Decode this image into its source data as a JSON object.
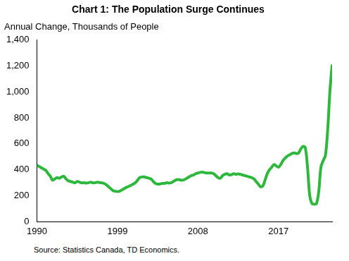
{
  "chart_data": {
    "type": "line",
    "title": "Chart 1: The Population Surge Continues",
    "ylabel": "Annual Change, Thousands of People",
    "note": "Source: Statistics Canada, TD Economics.",
    "categories": [
      "1990",
      null,
      null,
      null,
      null,
      null,
      null,
      null,
      null,
      null,
      null,
      null,
      null,
      null,
      null,
      null,
      null,
      null,
      null,
      null,
      null,
      null,
      null,
      null,
      null,
      null,
      null,
      null,
      null,
      null,
      null,
      null,
      null,
      null,
      null,
      null,
      "1999",
      null,
      null,
      null,
      null,
      null,
      null,
      null,
      null,
      null,
      null,
      null,
      null,
      null,
      null,
      null,
      null,
      null,
      null,
      null,
      null,
      null,
      null,
      null,
      null,
      null,
      null,
      null,
      null,
      null,
      null,
      null,
      null,
      null,
      null,
      null,
      "2008",
      null,
      null,
      null,
      null,
      null,
      null,
      null,
      null,
      null,
      null,
      null,
      null,
      null,
      null,
      null,
      null,
      null,
      null,
      null,
      null,
      null,
      null,
      null,
      null,
      null,
      null,
      null,
      null,
      null,
      null,
      null,
      null,
      null,
      null,
      null,
      "2017",
      null,
      null,
      null,
      null,
      null,
      null,
      null,
      null,
      null,
      null,
      null,
      null,
      null,
      null,
      null,
      null,
      null,
      null,
      null,
      null,
      null,
      null,
      null,
      null
    ],
    "values": [
      435,
      425,
      415,
      405,
      395,
      370,
      350,
      320,
      330,
      340,
      335,
      345,
      350,
      330,
      315,
      310,
      305,
      300,
      310,
      305,
      300,
      300,
      298,
      300,
      305,
      300,
      300,
      305,
      302,
      300,
      295,
      285,
      270,
      255,
      240,
      235,
      233,
      235,
      245,
      255,
      265,
      272,
      280,
      290,
      300,
      320,
      340,
      345,
      345,
      340,
      335,
      330,
      310,
      295,
      290,
      290,
      295,
      295,
      300,
      298,
      300,
      310,
      320,
      325,
      322,
      320,
      325,
      335,
      345,
      355,
      360,
      370,
      375,
      380,
      382,
      378,
      375,
      375,
      375,
      370,
      355,
      340,
      335,
      355,
      365,
      370,
      360,
      362,
      370,
      365,
      368,
      365,
      360,
      355,
      350,
      345,
      340,
      330,
      310,
      290,
      270,
      275,
      320,
      370,
      400,
      420,
      440,
      430,
      420,
      440,
      470,
      490,
      505,
      515,
      525,
      530,
      525,
      530,
      560,
      580,
      570,
      420,
      200,
      140,
      135,
      140,
      230,
      420,
      470,
      510,
      700,
      1000,
      1210
    ],
    "color": "#2db83d",
    "ylim": [
      0,
      1400
    ],
    "yticks": [
      0,
      200,
      400,
      600,
      800,
      {
        "value": 1000,
        "label": "1,000"
      },
      {
        "value": 1200,
        "label": "1,200"
      },
      {
        "value": 1400,
        "label": "1,400"
      }
    ],
    "grid": false
  }
}
